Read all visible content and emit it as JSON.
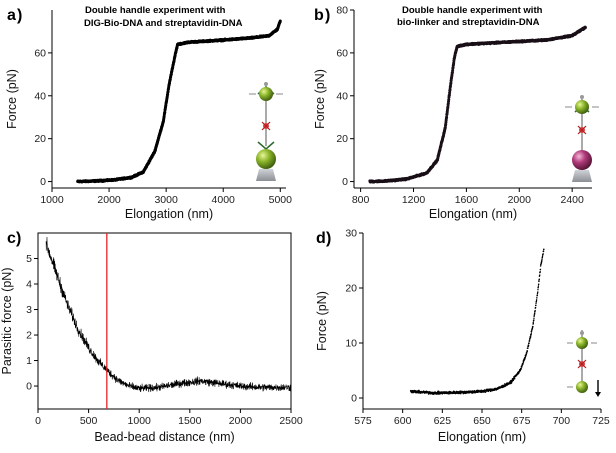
{
  "chart_data": [
    {
      "panel_label": "a",
      "type": "scatter",
      "title_lines": [
        "Double handle experiment with",
        "DIG-Bio-DNA and streptavidin-DNA"
      ],
      "xlabel": "Elongation (nm)",
      "ylabel": "Force (pN)",
      "xlim": [
        1000,
        5100
      ],
      "ylim": [
        -3,
        80
      ],
      "xticks": [
        1000,
        2000,
        3000,
        4000,
        5000
      ],
      "yticks": [
        0,
        20,
        40,
        60
      ],
      "grid": false,
      "marker_color": "#000000",
      "key_points": [
        [
          1450,
          0
        ],
        [
          1800,
          0.3
        ],
        [
          2100,
          0.8
        ],
        [
          2400,
          2
        ],
        [
          2600,
          4.5
        ],
        [
          2800,
          14
        ],
        [
          2950,
          28
        ],
        [
          3050,
          45
        ],
        [
          3150,
          58
        ],
        [
          3200,
          64
        ],
        [
          3400,
          65
        ],
        [
          4000,
          66
        ],
        [
          4500,
          67
        ],
        [
          4800,
          68
        ],
        [
          4950,
          71
        ],
        [
          5000,
          75
        ]
      ]
    },
    {
      "panel_label": "b",
      "type": "scatter",
      "title_lines": [
        "Double handle experiment with",
        "bio-linker and streptavidin-DNA"
      ],
      "xlabel": "Elongation (nm)",
      "ylabel": "Force (pN)",
      "xlim": [
        750,
        2550
      ],
      "ylim": [
        -3,
        80
      ],
      "xticks": [
        800,
        1200,
        1600,
        2000,
        2400
      ],
      "yticks": [
        0,
        20,
        40,
        60,
        80
      ],
      "grid": false,
      "marker_color": "#1a1018",
      "key_points": [
        [
          870,
          0
        ],
        [
          1000,
          0.3
        ],
        [
          1150,
          1.2
        ],
        [
          1300,
          4
        ],
        [
          1380,
          10
        ],
        [
          1440,
          25
        ],
        [
          1480,
          45
        ],
        [
          1510,
          58
        ],
        [
          1530,
          63
        ],
        [
          1600,
          64
        ],
        [
          1900,
          65
        ],
        [
          2200,
          66
        ],
        [
          2400,
          68
        ],
        [
          2500,
          72
        ]
      ]
    },
    {
      "panel_label": "c",
      "type": "line",
      "xlabel": "Bead-bead distance (nm)",
      "ylabel": "Parasitic force (pN)",
      "xlim": [
        0,
        2500
      ],
      "ylim": [
        -0.9,
        6
      ],
      "xticks": [
        0,
        500,
        1000,
        1500,
        2000,
        2500
      ],
      "yticks": [
        0,
        1,
        2,
        3,
        4,
        5
      ],
      "grid": false,
      "line_color": "#000000",
      "marker_line": {
        "x": 680,
        "color": "#e32626"
      },
      "key_points": [
        [
          80,
          5.6
        ],
        [
          200,
          4.2
        ],
        [
          300,
          3.1
        ],
        [
          400,
          2.2
        ],
        [
          500,
          1.5
        ],
        [
          600,
          0.95
        ],
        [
          700,
          0.55
        ],
        [
          800,
          0.2
        ],
        [
          900,
          0.0
        ],
        [
          1000,
          -0.1
        ],
        [
          1200,
          -0.05
        ],
        [
          1400,
          0.1
        ],
        [
          1600,
          0.2
        ],
        [
          1800,
          0.1
        ],
        [
          2000,
          0.0
        ],
        [
          2200,
          -0.05
        ],
        [
          2500,
          -0.05
        ]
      ]
    },
    {
      "panel_label": "d",
      "type": "scatter",
      "xlabel": "Elongation (nm)",
      "ylabel": "Force (pN)",
      "xlim": [
        575,
        725
      ],
      "ylim": [
        -2,
        30
      ],
      "xticks": [
        575,
        600,
        625,
        650,
        675,
        700,
        725
      ],
      "yticks": [
        0,
        10,
        20,
        30
      ],
      "grid": false,
      "marker_color": "#000000",
      "key_points": [
        [
          605,
          1.2
        ],
        [
          620,
          0.9
        ],
        [
          635,
          1.0
        ],
        [
          650,
          1.2
        ],
        [
          660,
          1.7
        ],
        [
          668,
          2.8
        ],
        [
          674,
          5.0
        ],
        [
          678,
          8.0
        ],
        [
          682,
          13.0
        ],
        [
          685,
          19.0
        ],
        [
          687,
          24.0
        ],
        [
          689,
          27.0
        ]
      ]
    }
  ]
}
